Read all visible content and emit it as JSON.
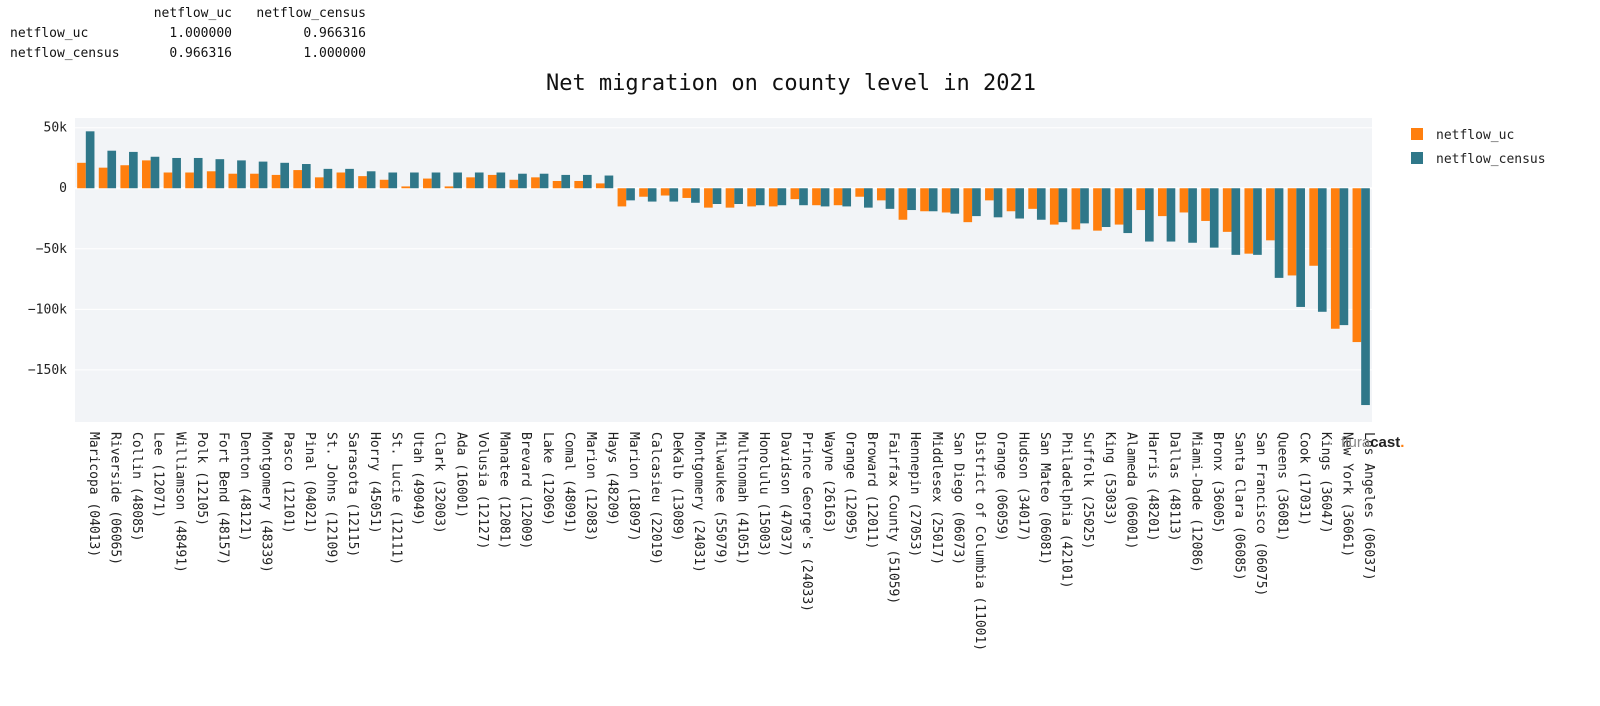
{
  "corr_table": {
    "header": [
      "",
      "netflow_uc",
      "netflow_census"
    ],
    "rows": [
      [
        "netflow_uc",
        "1.000000",
        "0.966316"
      ],
      [
        "netflow_census",
        "0.966316",
        "1.000000"
      ]
    ]
  },
  "watermark": {
    "light": "flura",
    "bold": "cast",
    "dot": "."
  },
  "chart_data": {
    "type": "bar",
    "title": "Net migration on county level in 2021",
    "xlabel": "",
    "ylabel": "",
    "ylim": [
      -193000,
      58000
    ],
    "yticks": [
      50000,
      0,
      -50000,
      -100000,
      -150000
    ],
    "ytick_labels": [
      "50k",
      "0",
      "−50k",
      "−100k",
      "−150k"
    ],
    "grid": true,
    "legend": "top-right",
    "categories": [
      "Maricopa (04013)",
      "Riverside (06065)",
      "Collin (48085)",
      "Lee (12071)",
      "Williamson (48491)",
      "Polk (12105)",
      "Fort Bend (48157)",
      "Denton (48121)",
      "Montgomery (48339)",
      "Pasco (12101)",
      "Pinal (04021)",
      "St. Johns (12109)",
      "Sarasota (12115)",
      "Horry (45051)",
      "St. Lucie (12111)",
      "Utah (49049)",
      "Clark (32003)",
      "Ada (16001)",
      "Volusia (12127)",
      "Manatee (12081)",
      "Brevard (12009)",
      "Lake (12069)",
      "Comal (48091)",
      "Marion (12083)",
      "Hays (48209)",
      "Marion (18097)",
      "Calcasieu (22019)",
      "DeKalb (13089)",
      "Montgomery (24031)",
      "Milwaukee (55079)",
      "Multnomah (41051)",
      "Honolulu (15003)",
      "Davidson (47037)",
      "Prince George's (24033)",
      "Wayne (26163)",
      "Orange (12095)",
      "Broward (12011)",
      "Fairfax County (51059)",
      "Hennepin (27053)",
      "Middlesex (25017)",
      "San Diego (06073)",
      "District of Columbia (11001)",
      "Orange (06059)",
      "Hudson (34017)",
      "San Mateo (06081)",
      "Philadelphia (42101)",
      "Suffolk (25025)",
      "King (53033)",
      "Alameda (06001)",
      "Harris (48201)",
      "Dallas (48113)",
      "Miami-Dade (12086)",
      "Bronx (36005)",
      "Santa Clara (06085)",
      "San Francisco (06075)",
      "Queens (36081)",
      "Cook (17031)",
      "Kings (36047)",
      "New York (36061)",
      "Los Angeles (06037)"
    ],
    "series": [
      {
        "name": "netflow_uc",
        "color": "#ff7f0e",
        "values": [
          21000,
          17000,
          19000,
          23000,
          13000,
          13000,
          14000,
          12000,
          12000,
          11000,
          15000,
          9000,
          13000,
          10000,
          7000,
          1500,
          8000,
          1500,
          9000,
          11000,
          7000,
          9000,
          6000,
          6000,
          4000,
          -15000,
          -7000,
          -6000,
          -8000,
          -16000,
          -16000,
          -15000,
          -15000,
          -9000,
          -14000,
          -14000,
          -7000,
          -10000,
          -26000,
          -19000,
          -20000,
          -28000,
          -10000,
          -19000,
          -17000,
          -30000,
          -34000,
          -35000,
          -30000,
          -18000,
          -23000,
          -20000,
          -27000,
          -36000,
          -54000,
          -43000,
          -72000,
          -64000,
          -116000,
          -127000
        ]
      },
      {
        "name": "netflow_census",
        "color": "#2f7789",
        "values": [
          47000,
          31000,
          30000,
          26000,
          25000,
          25000,
          24000,
          23000,
          22000,
          21000,
          20000,
          16000,
          16000,
          14000,
          13000,
          13000,
          13000,
          13000,
          13000,
          13000,
          12000,
          12000,
          11000,
          11000,
          10500,
          -10000,
          -11000,
          -11000,
          -12000,
          -13000,
          -13000,
          -14000,
          -14000,
          -14000,
          -15000,
          -15000,
          -16000,
          -17000,
          -18000,
          -19000,
          -21000,
          -23000,
          -24000,
          -25000,
          -26000,
          -28000,
          -29000,
          -32000,
          -37000,
          -44000,
          -44000,
          -45000,
          -49000,
          -55000,
          -55000,
          -74000,
          -98000,
          -102000,
          -113000,
          -179000
        ]
      }
    ]
  }
}
